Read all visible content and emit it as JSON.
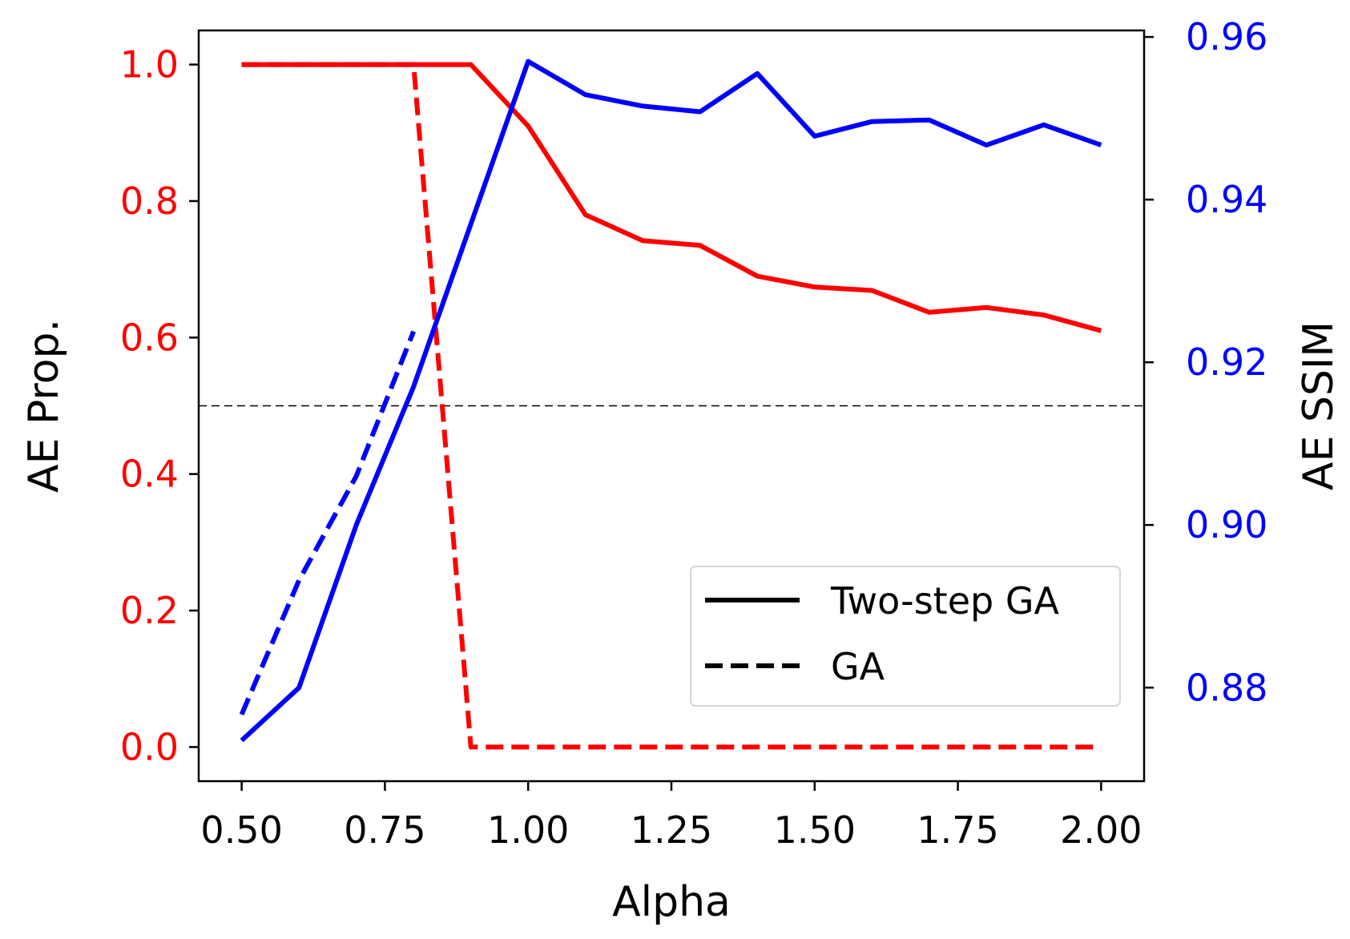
{
  "chart_data": {
    "type": "line",
    "xlabel": "Alpha",
    "ylabel_left": "AE Prop.",
    "ylabel_right": "AE SSIM",
    "xlim": [
      0.425,
      2.075
    ],
    "ylim_left": [
      -0.05,
      1.05
    ],
    "ylim_right": [
      0.8685,
      0.9608
    ],
    "x_ticks": [
      "0.50",
      "0.75",
      "1.00",
      "1.25",
      "1.50",
      "1.75",
      "2.00"
    ],
    "y_left_ticks": [
      "0.0",
      "0.2",
      "0.4",
      "0.6",
      "0.8",
      "1.0"
    ],
    "y_right_ticks": [
      "0.88",
      "0.90",
      "0.92",
      "0.94",
      "0.96"
    ],
    "left_axis_color": "#ff0000",
    "right_axis_color": "#0000ff",
    "reference_line": {
      "axis": "left",
      "value": 0.5,
      "style": "dashed",
      "color": "#000000"
    },
    "grid": false,
    "legend": {
      "position": "lower-right",
      "entries": [
        {
          "label": "Two-step GA",
          "style": "solid"
        },
        {
          "label": "GA",
          "style": "dashed"
        }
      ]
    },
    "series": [
      {
        "legend_entry": "Two-step GA",
        "axis": "left",
        "color": "#ff0000",
        "style": "solid",
        "x": [
          0.5,
          0.6,
          0.7,
          0.8,
          0.9,
          1.0,
          1.1,
          1.2,
          1.3,
          1.4,
          1.5,
          1.6,
          1.7,
          1.8,
          1.9,
          2.0
        ],
        "y": [
          1.0,
          1.0,
          1.0,
          1.0,
          1.0,
          0.91,
          0.78,
          0.742,
          0.735,
          0.69,
          0.674,
          0.669,
          0.637,
          0.644,
          0.633,
          0.61
        ]
      },
      {
        "legend_entry": "GA",
        "axis": "left",
        "color": "#ff0000",
        "style": "dashed",
        "x": [
          0.5,
          0.6,
          0.7,
          0.8,
          0.9,
          1.0,
          1.1,
          1.2,
          1.3,
          1.4,
          1.5,
          1.6,
          1.7,
          1.8,
          1.9,
          2.0
        ],
        "y": [
          1.0,
          1.0,
          1.0,
          1.0,
          0.0,
          0.0,
          0.0,
          0.0,
          0.0,
          0.0,
          0.0,
          0.0,
          0.0,
          0.0,
          0.0,
          0.0
        ]
      },
      {
        "legend_entry": "Two-step GA",
        "axis": "right",
        "color": "#0000ff",
        "style": "solid",
        "x": [
          0.5,
          0.6,
          0.7,
          0.8,
          0.9,
          1.0,
          1.1,
          1.2,
          1.3,
          1.4,
          1.5,
          1.6,
          1.7,
          1.8,
          1.9,
          2.0
        ],
        "y": [
          0.8735,
          0.88,
          0.9,
          0.917,
          0.937,
          0.957,
          0.9529,
          0.9515,
          0.9508,
          0.9555,
          0.9478,
          0.9496,
          0.9498,
          0.9467,
          0.9492,
          0.9467
        ]
      },
      {
        "legend_entry": "GA",
        "axis": "right",
        "color": "#0000ff",
        "style": "dashed",
        "x": [
          0.5,
          0.6,
          0.7,
          0.8
        ],
        "y": [
          0.8767,
          0.8932,
          0.906,
          0.9238
        ]
      }
    ]
  }
}
